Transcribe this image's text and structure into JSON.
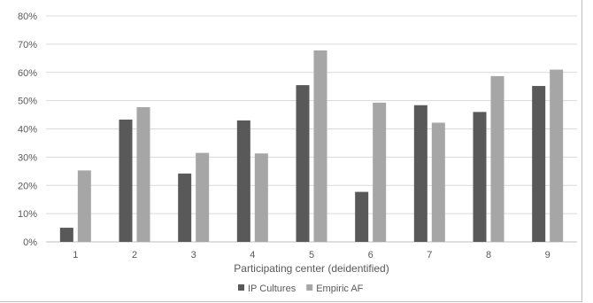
{
  "chart_data": {
    "type": "bar",
    "categories": [
      "1",
      "2",
      "3",
      "4",
      "5",
      "6",
      "7",
      "8",
      "9"
    ],
    "series": [
      {
        "name": "IP Cultures",
        "color": "#595959",
        "values": [
          5,
          43.3,
          24.2,
          43,
          55.5,
          17.7,
          48.4,
          46,
          55.2
        ]
      },
      {
        "name": "Empiric AF",
        "color": "#a6a6a6",
        "values": [
          25.3,
          47.7,
          31.5,
          31.3,
          67.8,
          49.3,
          42.2,
          58.7,
          61
        ]
      }
    ],
    "y_ticks": [
      "0%",
      "10%",
      "20%",
      "30%",
      "40%",
      "50%",
      "60%",
      "70%",
      "80%"
    ],
    "ylim": [
      0,
      80
    ],
    "xlabel": "Participating center (deidentified)",
    "ylabel": "",
    "grid": true,
    "legend_position": "bottom"
  }
}
